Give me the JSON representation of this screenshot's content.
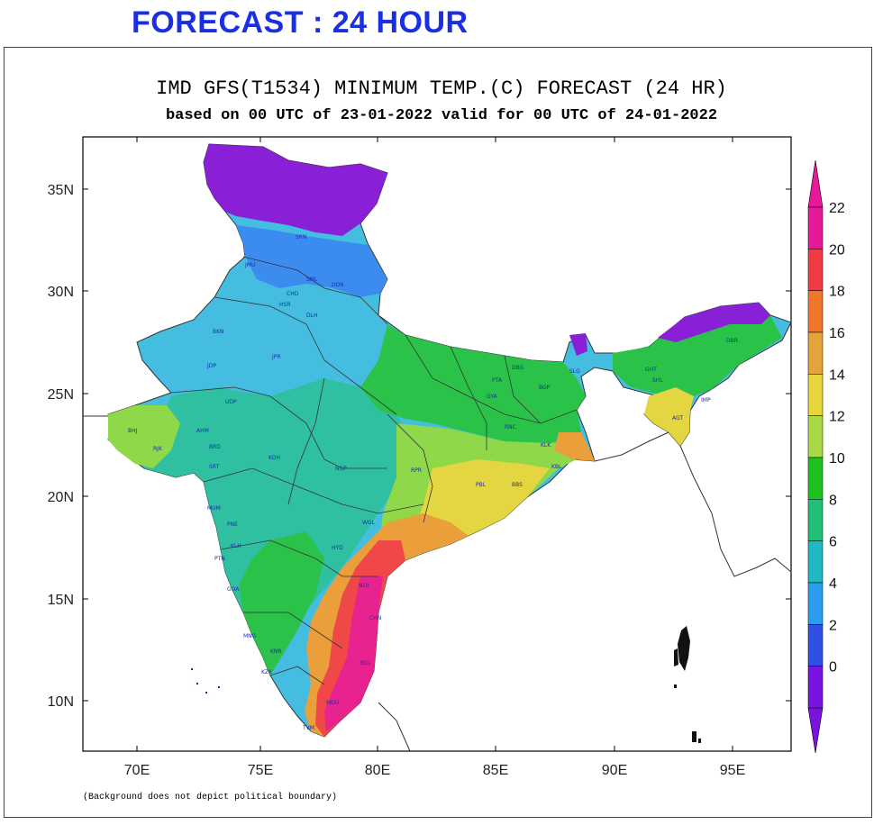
{
  "header": {
    "title": "FORECAST : 24 HOUR"
  },
  "chart": {
    "title": "IMD GFS(T1534) MINIMUM TEMP.(C) FORECAST (24 HR)",
    "subtitle": "based on 00 UTC of 23-01-2022 valid for 00 UTC of 24-01-2022",
    "note": "(Background does not depict political boundary)",
    "lon_ticks": [
      "70E",
      "75E",
      "80E",
      "85E",
      "90E",
      "95E"
    ],
    "lat_ticks": [
      "35N",
      "30N",
      "25N",
      "20N",
      "15N",
      "10N"
    ]
  },
  "colorbar": {
    "labels": [
      "22",
      "20",
      "18",
      "16",
      "14",
      "12",
      "10",
      "8",
      "6",
      "4",
      "2",
      "0"
    ],
    "colors": [
      "#e8189b",
      "#f23a45",
      "#f0762a",
      "#e6a33a",
      "#e7d53a",
      "#a9d945",
      "#1fc11f",
      "#21bf77",
      "#1fb9c4",
      "#2a9df0",
      "#2e50e6",
      "#7a12e0"
    ]
  },
  "map_colors": {
    "purple": "#8a1fd8",
    "blue": "#3c8cf0",
    "lightblue": "#49b8e8",
    "teal": "#2fbfa5",
    "green": "#2ac33a",
    "lightgreen": "#8fd84a",
    "yellow": "#e4d640",
    "orange": "#e9a83c",
    "red": "#f04848",
    "magenta": "#e8228f"
  },
  "cities": [
    "JMU",
    "SRN",
    "SML",
    "DDN",
    "HSR",
    "CHD",
    "DLH",
    "JPR",
    "BKN",
    "JDP",
    "UDP",
    "AHM",
    "BHJ",
    "RJK",
    "BRD",
    "SRT",
    "MUM",
    "PNE",
    "KLH",
    "PTN",
    "GOA",
    "MNG",
    "KZK",
    "TVM",
    "MDU",
    "CHN",
    "NLR",
    "HYD",
    "WGL",
    "NGP",
    "RPR",
    "PTA",
    "RNC",
    "KLK",
    "BBS",
    "GYA",
    "DBG",
    "SLG",
    "GHT",
    "SHL",
    "IMP",
    "AGT",
    "DBR",
    "BGP",
    "KBL",
    "BGL",
    "KOH",
    "PBL",
    "KNR"
  ]
}
